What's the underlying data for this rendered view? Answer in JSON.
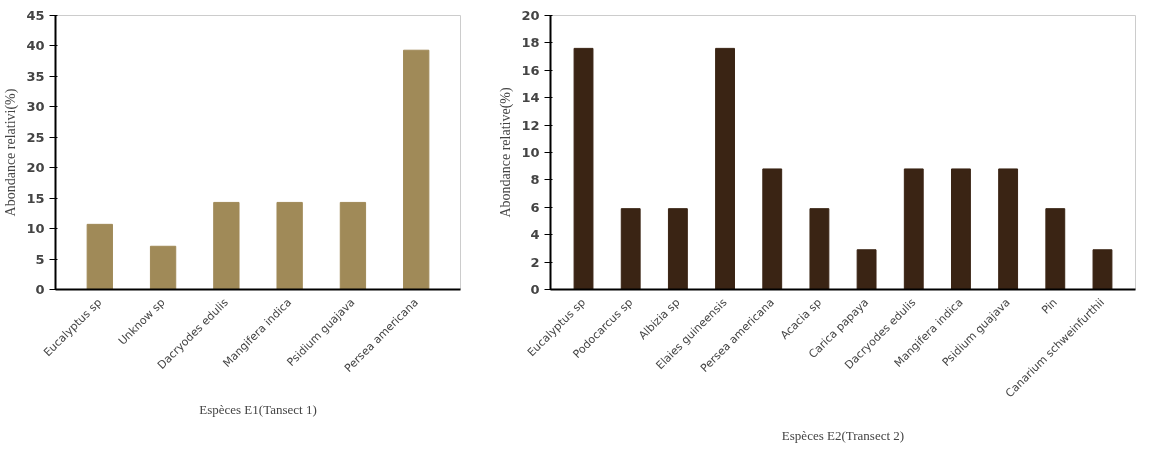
{
  "chart_data": [
    {
      "type": "bar",
      "xlabel": "Espèces E1(Tansect 1)",
      "ylabel": "Abondance relativi(%)",
      "categories": [
        "Eucalyptus sp",
        "Unknow sp",
        "Dacryodes edulis",
        "Mangifera indica",
        "Psidium guajava",
        "Persea americana"
      ],
      "values": [
        10.7,
        7.1,
        14.3,
        14.3,
        14.3,
        39.3
      ],
      "color": "#a08a58",
      "ylim": [
        0,
        45
      ],
      "yticks": [
        0,
        5,
        10,
        15,
        20,
        25,
        30,
        35,
        40,
        45
      ],
      "grid": false
    },
    {
      "type": "bar",
      "xlabel": "Espèces E2(Transect 2)",
      "ylabel": "Abondance relative(%)",
      "categories": [
        "Eucalyptus sp",
        "Podocarcus sp",
        "Albizia sp",
        "Elaies guineensis",
        "Persea americana",
        "Acacia sp",
        "Carica papaya",
        "Dacryodes edulis",
        "Mangifera indica",
        "Psidium guajava",
        "Pin",
        "Canarium schweinfurthii"
      ],
      "values": [
        17.6,
        5.9,
        5.9,
        17.6,
        8.8,
        5.9,
        2.9,
        8.8,
        8.8,
        8.8,
        5.9,
        2.9
      ],
      "color": "#3a2414",
      "ylim": [
        0,
        20
      ],
      "yticks": [
        0,
        2,
        4,
        6,
        8,
        10,
        12,
        14,
        16,
        18,
        20
      ],
      "grid": false
    }
  ]
}
